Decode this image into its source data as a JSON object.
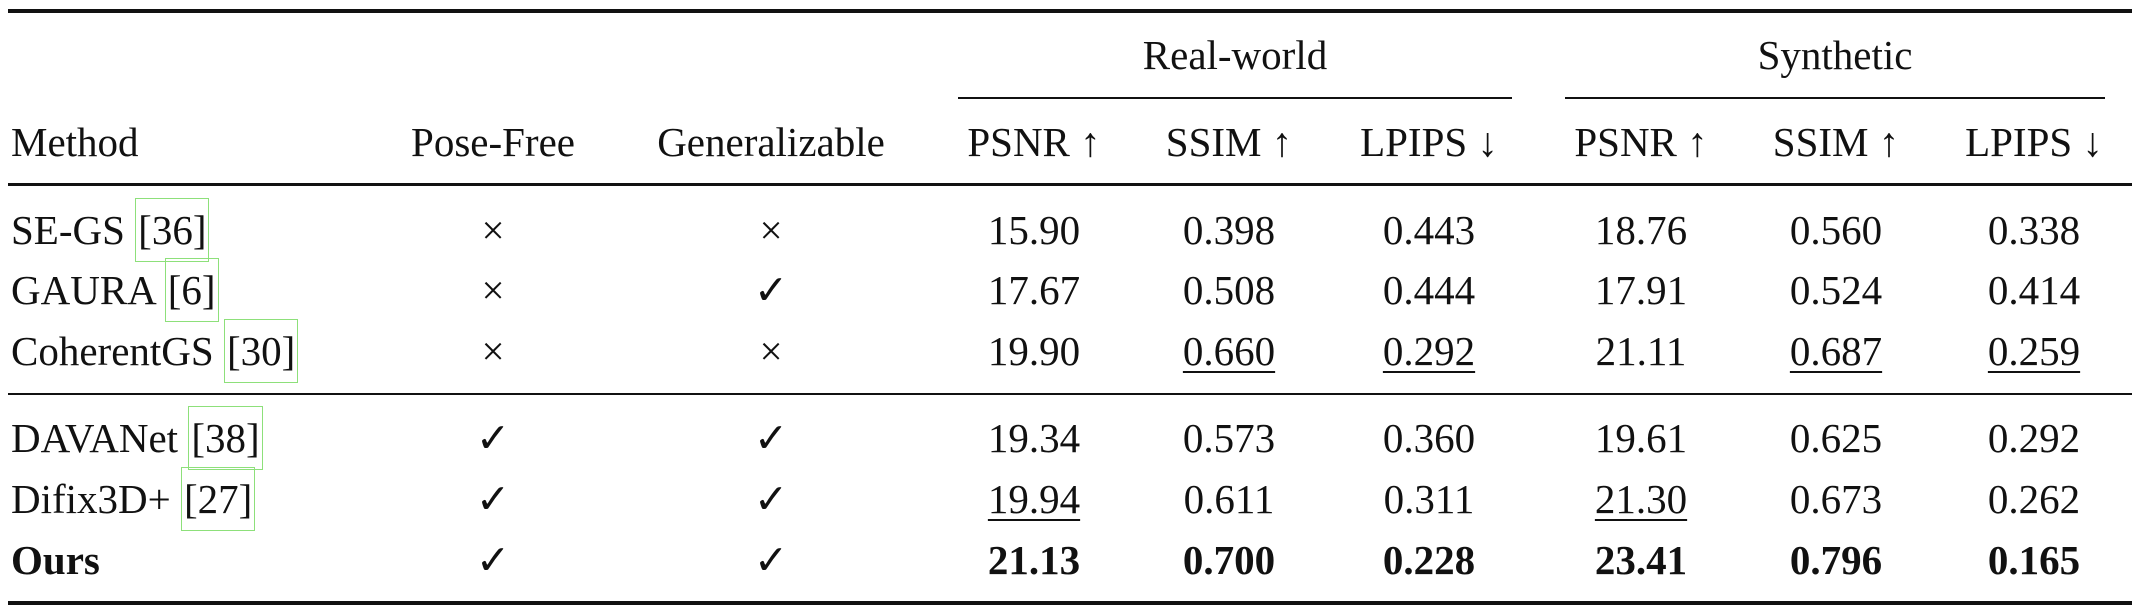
{
  "table": {
    "group_headers": [
      "Real-world",
      "Synthetic"
    ],
    "columns": [
      "Method",
      "Pose-Free",
      "Generalizable",
      "PSNR ↑",
      "SSIM ↑",
      "LPIPS ↓",
      "PSNR ↑",
      "SSIM ↑",
      "LPIPS ↓"
    ],
    "rows": [
      {
        "method": "SE-GS",
        "cite": "[36]",
        "cells": [
          "×",
          "×",
          "15.90",
          "0.398",
          "0.443",
          "18.76",
          "0.560",
          "0.338"
        ]
      },
      {
        "method": "GAURA",
        "cite": "[6]",
        "cells": [
          "×",
          "✓",
          "17.67",
          "0.508",
          "0.444",
          "17.91",
          "0.524",
          "0.414"
        ]
      },
      {
        "method": "CoherentGS",
        "cite": "[30]",
        "cells": [
          "×",
          "×",
          "19.90",
          "0.660",
          "0.292",
          "21.11",
          "0.687",
          "0.259"
        ]
      },
      {
        "method": "DAVANet",
        "cite": "[38]",
        "cells": [
          "✓",
          "✓",
          "19.34",
          "0.573",
          "0.360",
          "19.61",
          "0.625",
          "0.292"
        ]
      },
      {
        "method": "Difix3D+",
        "cite": "[27]",
        "cells": [
          "✓",
          "✓",
          "19.94",
          "0.611",
          "0.311",
          "21.30",
          "0.673",
          "0.262"
        ]
      },
      {
        "method": "Ours",
        "cells": [
          "✓",
          "✓",
          "21.13",
          "0.700",
          "0.228",
          "23.41",
          "0.796",
          "0.165"
        ]
      }
    ]
  }
}
